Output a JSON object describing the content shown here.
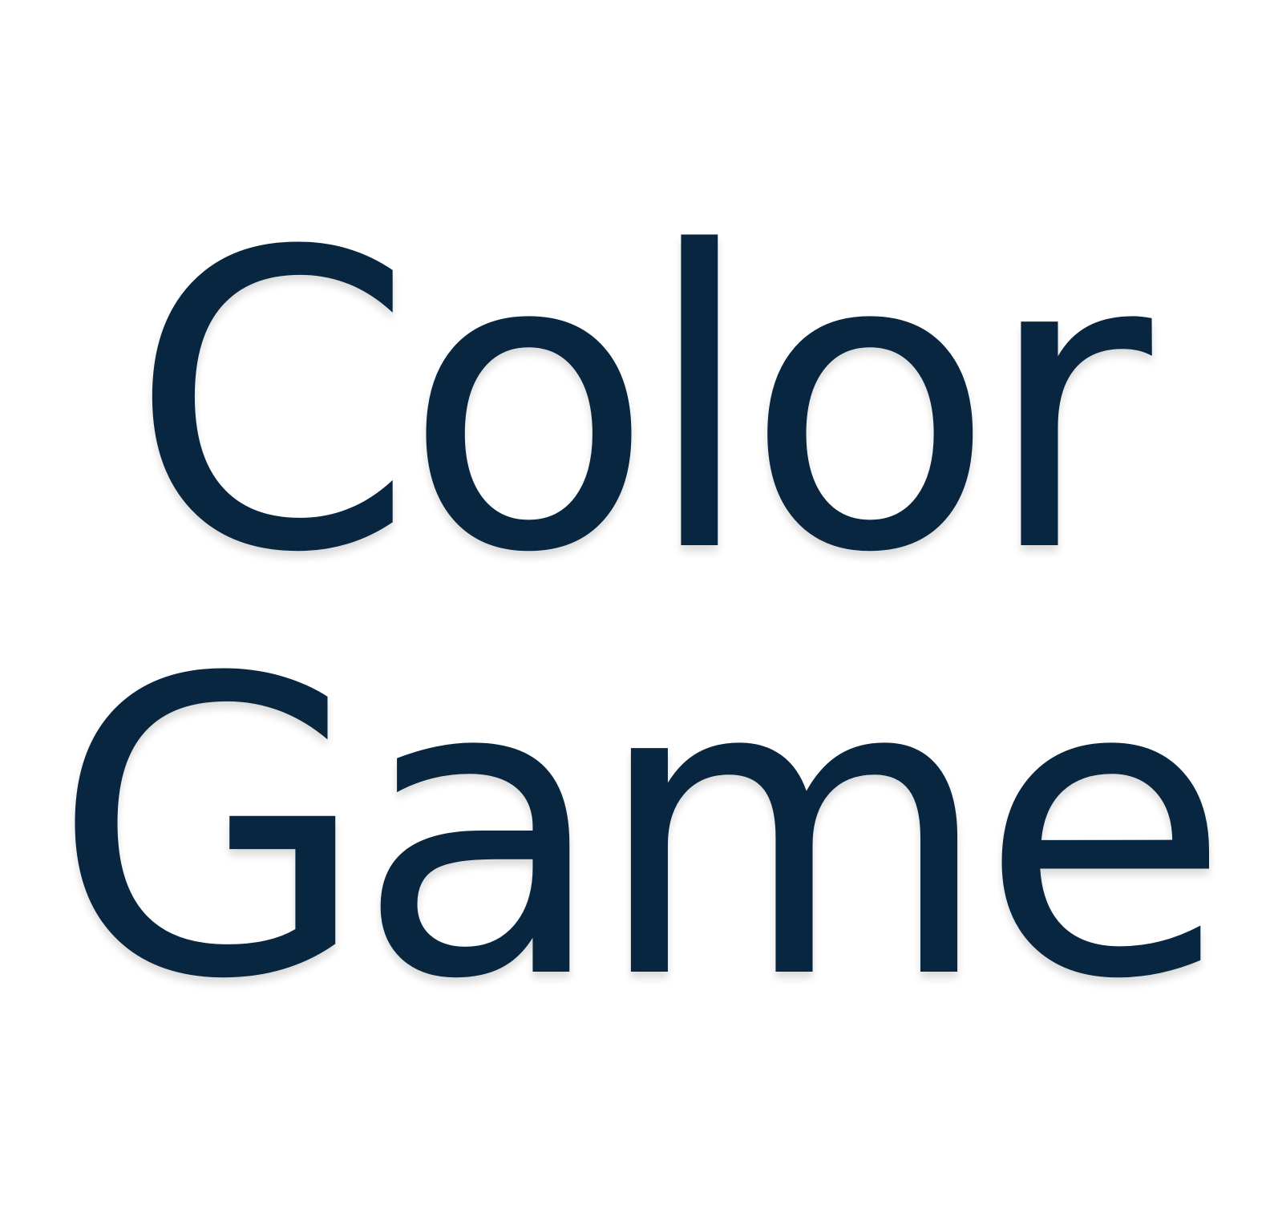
{
  "logo": {
    "line_one": "Color",
    "line_two": "Game",
    "text_color": "#08263f",
    "background_color": "#ffffff"
  }
}
